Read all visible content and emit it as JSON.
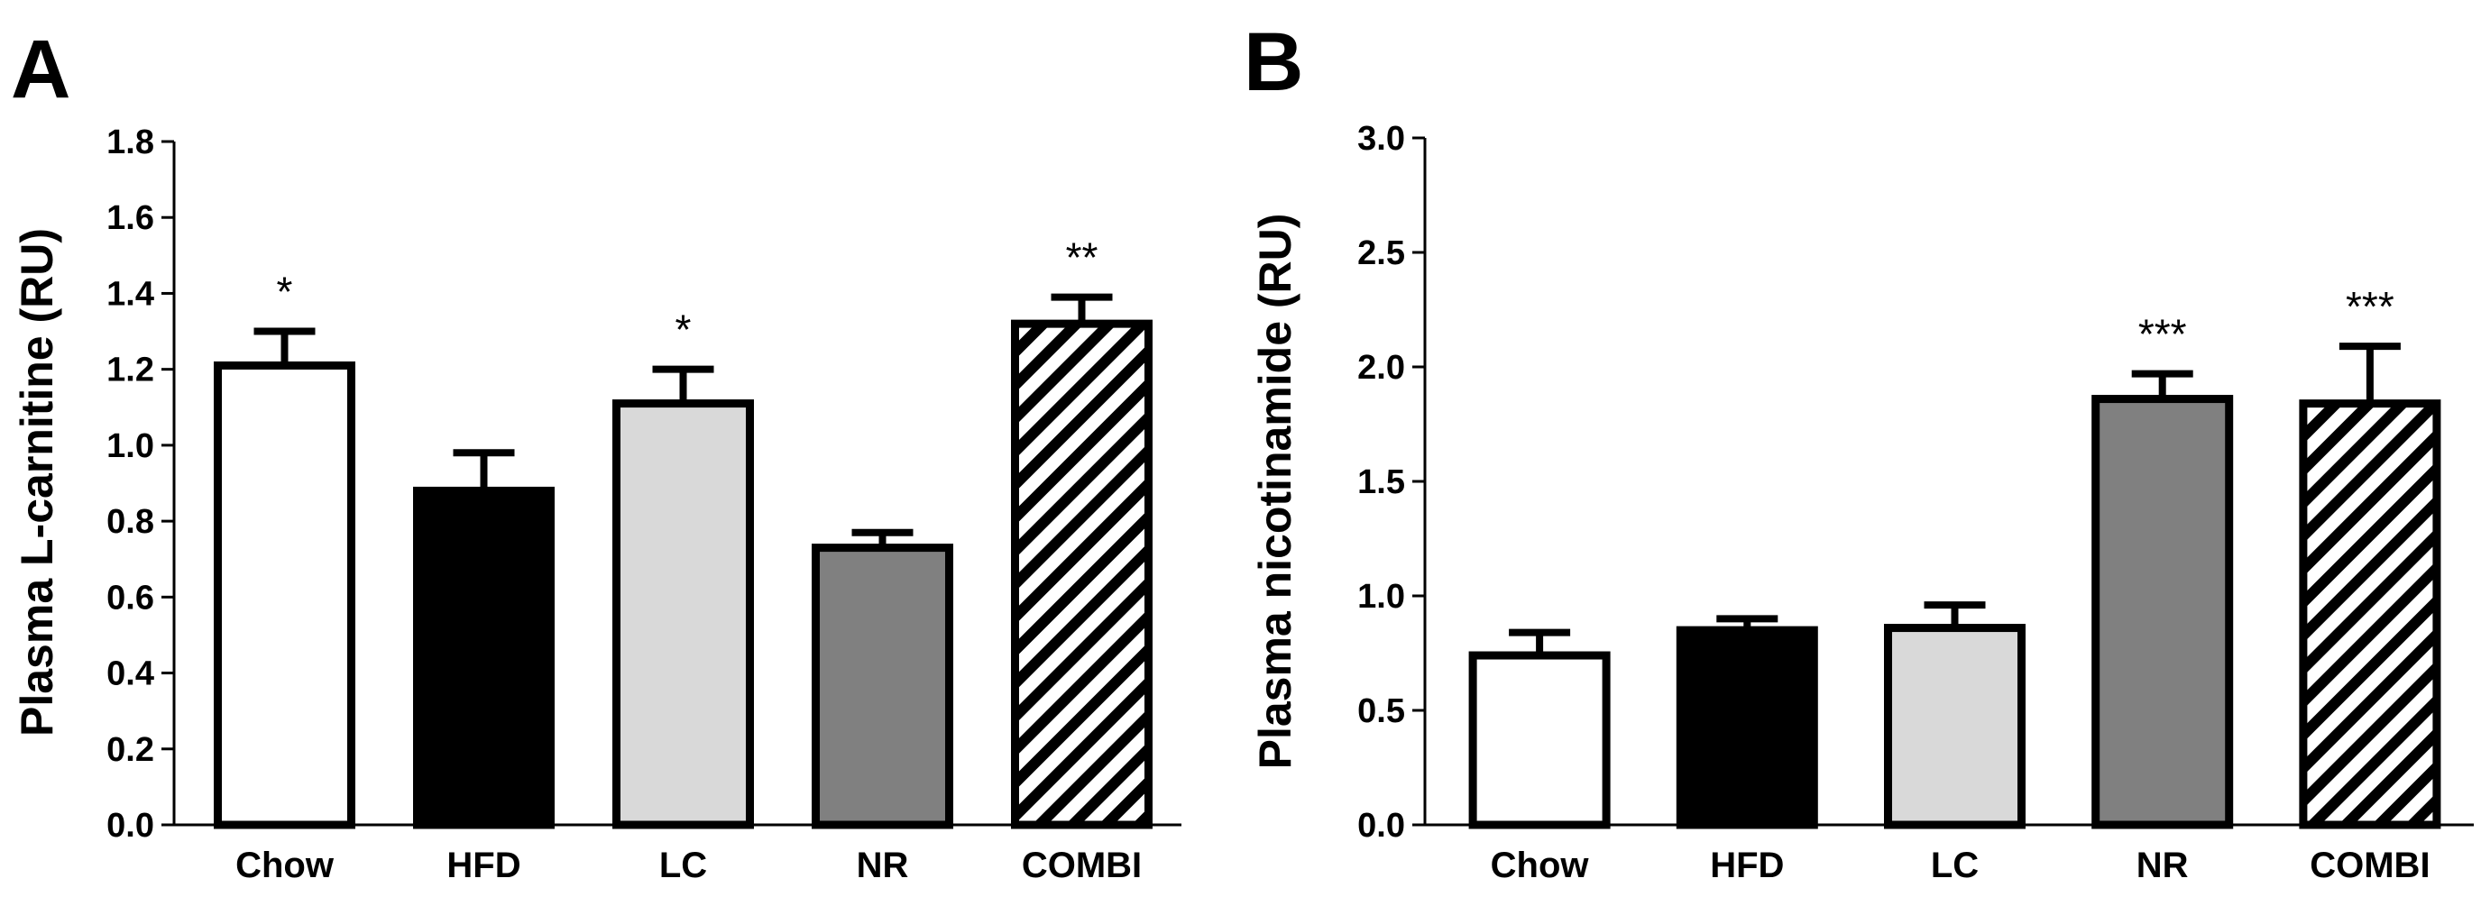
{
  "chart_data": [
    {
      "panel": "A",
      "type": "bar",
      "categories": [
        "Chow",
        "HFD",
        "LC",
        "NR",
        "COMBI"
      ],
      "values": [
        1.21,
        0.88,
        1.11,
        0.73,
        1.32
      ],
      "errors": [
        0.09,
        0.1,
        0.09,
        0.04,
        0.07
      ],
      "significance": [
        "*",
        "",
        "*",
        "",
        "**"
      ],
      "ylabel": "Plasma L-carnitine (RU)",
      "ylim": [
        0,
        1.8
      ],
      "yticks": [
        "0.0",
        "0.2",
        "0.4",
        "0.6",
        "0.8",
        "1.0",
        "1.2",
        "1.4",
        "1.6",
        "1.8"
      ],
      "bar_fills": [
        "white",
        "black",
        "lightgray",
        "gray",
        "hatched"
      ],
      "grid": false
    },
    {
      "panel": "B",
      "type": "bar",
      "categories": [
        "Chow",
        "HFD",
        "LC",
        "NR",
        "COMBI"
      ],
      "values": [
        0.74,
        0.85,
        0.86,
        1.86,
        1.84
      ],
      "errors": [
        0.1,
        0.05,
        0.1,
        0.11,
        0.25
      ],
      "significance": [
        "",
        "",
        "",
        "***",
        "***"
      ],
      "ylabel": "Plasma nicotinamide (RU)",
      "ylim": [
        0,
        3.0
      ],
      "yticks": [
        "0.0",
        "0.5",
        "1.0",
        "1.5",
        "2.0",
        "2.5",
        "3.0"
      ],
      "bar_fills": [
        "white",
        "black",
        "lightgray",
        "gray",
        "hatched"
      ],
      "grid": false
    }
  ],
  "colors": {
    "white": "#ffffff",
    "black": "#000000",
    "lightgray": "#d9d9d9",
    "gray": "#808080",
    "stroke": "#000000"
  }
}
